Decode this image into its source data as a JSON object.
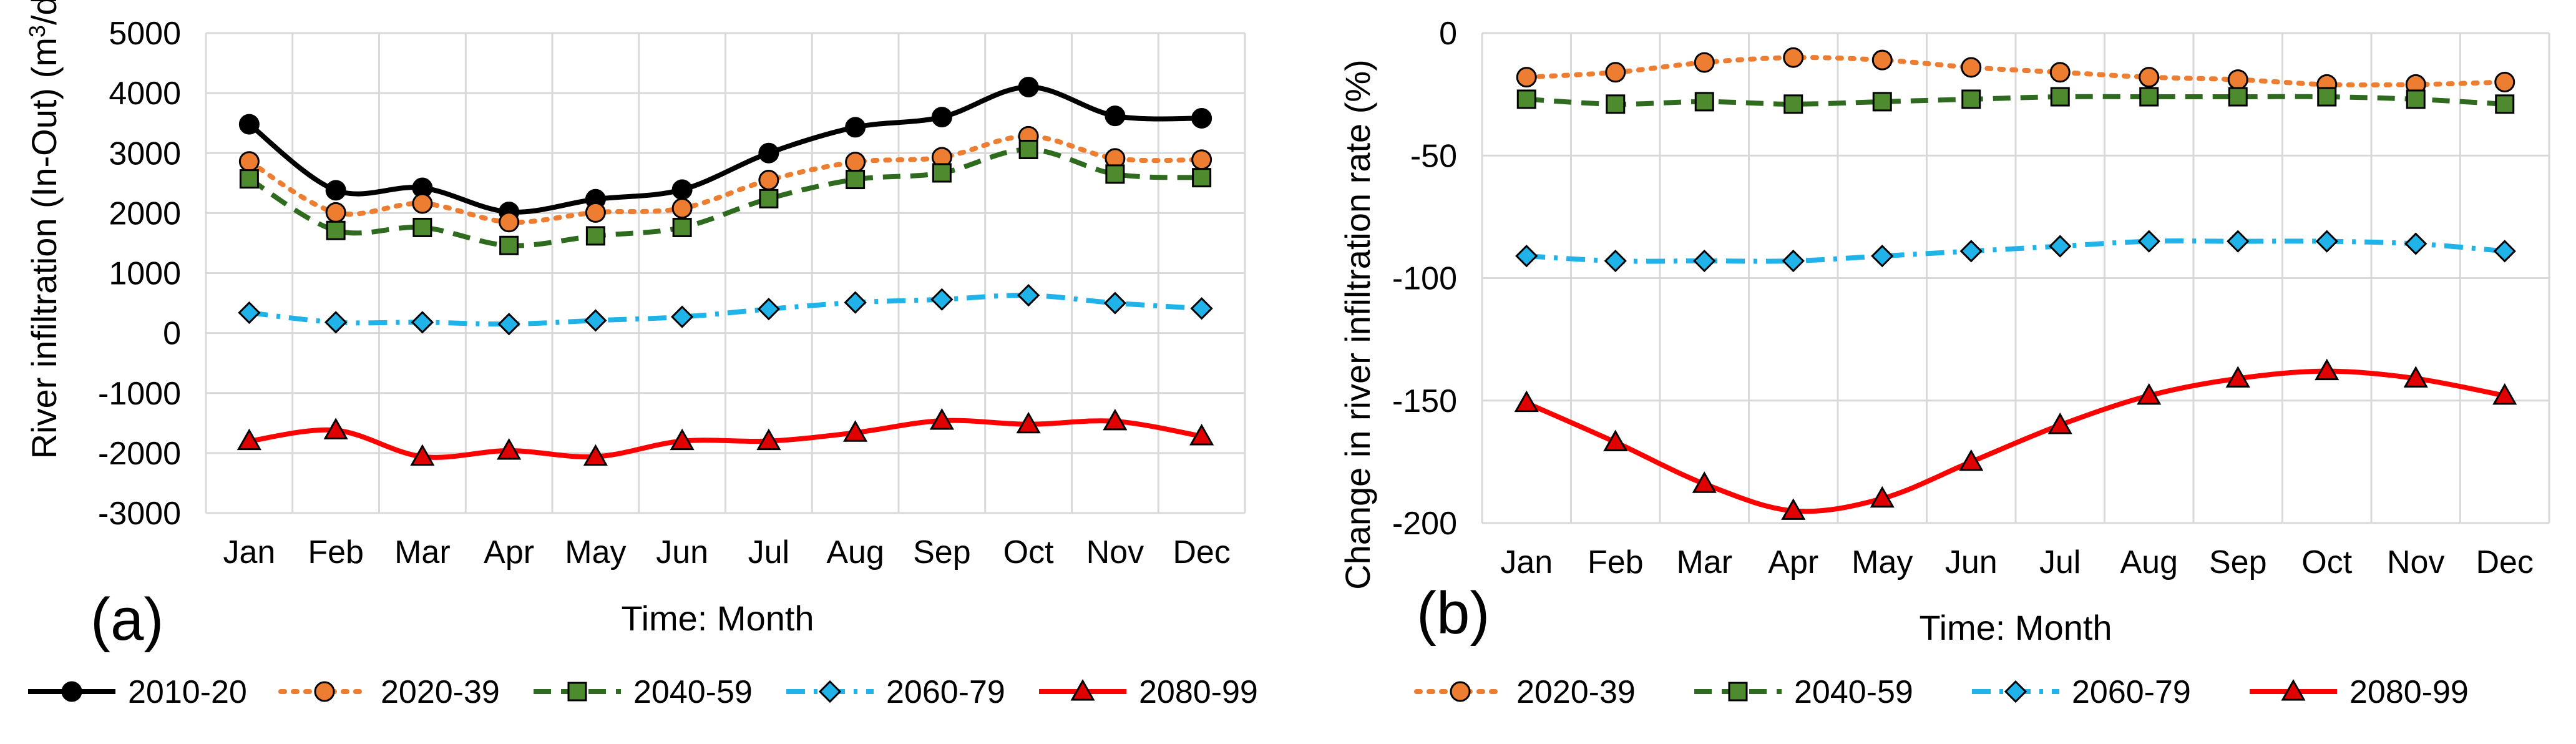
{
  "panel_a": {
    "label": "(a)",
    "chart_data": {
      "type": "line",
      "title": "",
      "xlabel": "Time: Month",
      "ylabel": "River infiltration (In-Out) (m",
      "ylabel_sup": "3",
      "ylabel_suffix": "/d)",
      "ylim": [
        -3000,
        5000
      ],
      "yticks": [
        "5000",
        "4000",
        "3000",
        "2000",
        "1000",
        "0",
        "-1000",
        "-2000",
        "-3000"
      ],
      "grid": true,
      "categories": [
        "Jan",
        "Feb",
        "Mar",
        "Apr",
        "May",
        "Jun",
        "Jul",
        "Aug",
        "Sep",
        "Oct",
        "Nov",
        "Dec"
      ],
      "series": [
        {
          "name": "2010-20",
          "values": [
            3480,
            2380,
            2420,
            2020,
            2230,
            2390,
            3000,
            3430,
            3600,
            4100,
            3620,
            3580
          ]
        },
        {
          "name": "2020-39",
          "values": [
            2860,
            2010,
            2160,
            1850,
            2010,
            2080,
            2550,
            2850,
            2930,
            3280,
            2910,
            2890
          ]
        },
        {
          "name": "2040-59",
          "values": [
            2570,
            1710,
            1760,
            1460,
            1620,
            1760,
            2240,
            2560,
            2670,
            3060,
            2650,
            2590
          ]
        },
        {
          "name": "2060-79",
          "values": [
            340,
            180,
            180,
            150,
            210,
            270,
            400,
            510,
            560,
            630,
            500,
            410
          ]
        },
        {
          "name": "2080-99",
          "values": [
            -1800,
            -1620,
            -2060,
            -1960,
            -2060,
            -1800,
            -1800,
            -1660,
            -1460,
            -1520,
            -1470,
            -1720
          ]
        }
      ]
    }
  },
  "panel_b": {
    "label": "(b)",
    "chart_data": {
      "type": "line",
      "title": "",
      "xlabel": "Time: Month",
      "ylabel": "Change in river infiltration rate (%)",
      "ylim": [
        -200,
        0
      ],
      "yticks": [
        "0",
        "-50",
        "-100",
        "-150",
        "-200"
      ],
      "grid": true,
      "categories": [
        "Jan",
        "Feb",
        "Mar",
        "Apr",
        "May",
        "Jun",
        "Jul",
        "Aug",
        "Sep",
        "Oct",
        "Nov",
        "Dec"
      ],
      "series": [
        {
          "name": "2020-39",
          "values": [
            -18,
            -16,
            -12,
            -10,
            -11,
            -14,
            -16,
            -18,
            -19,
            -21,
            -21,
            -20
          ]
        },
        {
          "name": "2040-59",
          "values": [
            -27,
            -29,
            -28,
            -29,
            -28,
            -27,
            -26,
            -26,
            -26,
            -26,
            -27,
            -29
          ]
        },
        {
          "name": "2060-79",
          "values": [
            -91,
            -93,
            -93,
            -93,
            -91,
            -89,
            -87,
            -85,
            -85,
            -85,
            -86,
            -89
          ]
        },
        {
          "name": "2080-99",
          "values": [
            -151,
            -167,
            -184,
            -195,
            -190,
            -175,
            -160,
            -148,
            -141,
            -138,
            -141,
            -148
          ]
        }
      ]
    }
  },
  "series_styles": {
    "2010-20": {
      "color": "#000000",
      "dash": "solid",
      "marker": "circle",
      "marker_fill": "#000000"
    },
    "2020-39": {
      "color": "#ED7D31",
      "dash": "dot",
      "marker": "circle",
      "marker_fill": "#ED7D31"
    },
    "2040-59": {
      "color": "#2E6B1F",
      "dash": "dash",
      "marker": "square",
      "marker_fill": "#4E8A2E"
    },
    "2060-79": {
      "color": "#1FB3EA",
      "dash": "dashdot",
      "marker": "diamond",
      "marker_fill": "#1FB3EA"
    },
    "2080-99": {
      "color": "#FF0000",
      "dash": "solid",
      "marker": "triangle",
      "marker_fill": "#E00000"
    }
  },
  "legend_a": [
    "2010-20",
    "2020-39",
    "2040-59",
    "2060-79",
    "2080-99"
  ],
  "legend_b": [
    "2020-39",
    "2040-59",
    "2060-79",
    "2080-99"
  ]
}
